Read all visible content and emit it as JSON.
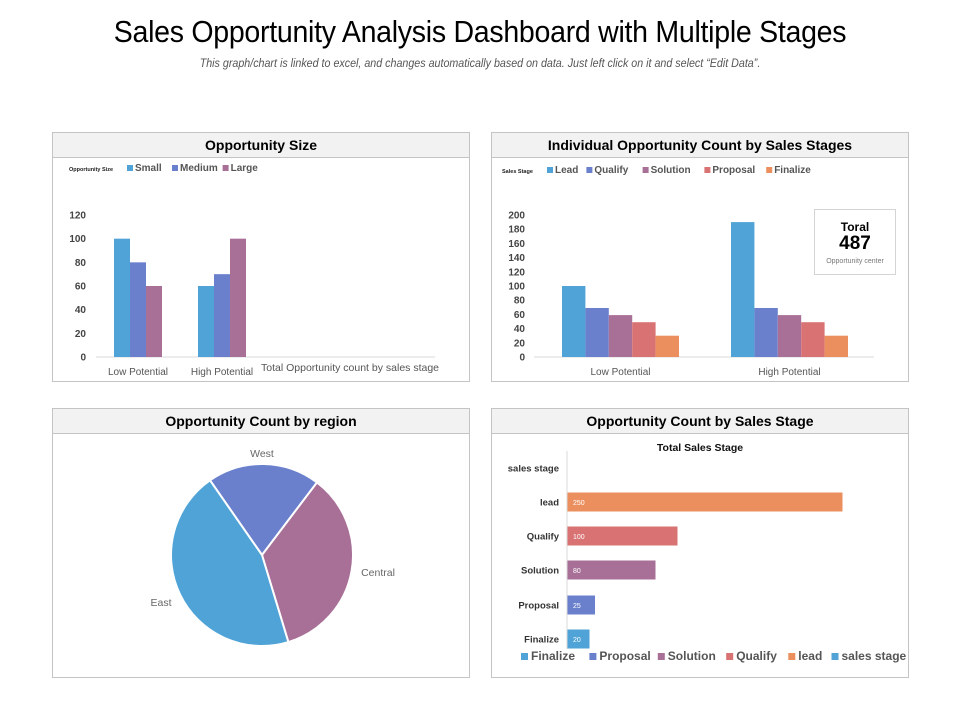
{
  "header": {
    "title": "Sales Opportunity Analysis Dashboard with Multiple Stages",
    "subtitle": "This graph/chart is linked to excel, and changes automatically based on data. Just left click on it and select “Edit Data”."
  },
  "colors": {
    "blue": "#4fa3d7",
    "indigo": "#6a80cd",
    "mauve": "#a86f97",
    "salmon": "#d97272",
    "orange": "#ec8f5f"
  },
  "panels": {
    "opportunity_size": {
      "title": "Opportunity Size",
      "footnote": "Total Opportunity  count by sales stage"
    },
    "individual_count": {
      "title": "Individual Opportunity Count by Sales Stages"
    },
    "region": {
      "title": "Opportunity Count by region"
    },
    "sales_stage": {
      "title": "Opportunity Count by Sales Stage"
    }
  },
  "total_box": {
    "label": "Toral",
    "value": "487",
    "caption": "Opportunity center"
  },
  "chart_data": [
    {
      "id": "opportunity_size",
      "type": "bar",
      "title": "Opportunity Size",
      "legend_title": "Opportunity Size",
      "legend_position": "top-left",
      "categories": [
        "Low Potential",
        "High Potential"
      ],
      "series": [
        {
          "name": "Small",
          "color": "#4fa3d7",
          "values": [
            100,
            60
          ]
        },
        {
          "name": "Medium",
          "color": "#6a80cd",
          "values": [
            80,
            70
          ]
        },
        {
          "name": "Large",
          "color": "#a86f97",
          "values": [
            60,
            100
          ]
        }
      ],
      "ylim": [
        0,
        120
      ],
      "yticks": [
        0,
        20,
        40,
        60,
        80,
        100,
        120
      ],
      "grid": false,
      "xlabel": "Total Opportunity  count by sales stage",
      "ylabel": ""
    },
    {
      "id": "individual_count",
      "type": "bar",
      "title": "Individual Opportunity Count by Sales Stages",
      "legend_title": "Sales Stage",
      "legend_position": "top-left",
      "categories": [
        "Low Potential",
        "High Potential"
      ],
      "series": [
        {
          "name": "Lead",
          "color": "#4fa3d7",
          "values": [
            100,
            190
          ]
        },
        {
          "name": "Qualify",
          "color": "#6a80cd",
          "values": [
            69,
            69
          ]
        },
        {
          "name": "Solution",
          "color": "#a86f97",
          "values": [
            59,
            59
          ]
        },
        {
          "name": "Proposal",
          "color": "#d97272",
          "values": [
            49,
            49
          ]
        },
        {
          "name": "Finalize",
          "color": "#ec8f5f",
          "values": [
            30,
            30
          ]
        }
      ],
      "ylim": [
        0,
        200
      ],
      "yticks": [
        0,
        20,
        40,
        60,
        80,
        100,
        120,
        140,
        160,
        180,
        200
      ],
      "grid": false,
      "xlabel": "",
      "ylabel": ""
    },
    {
      "id": "region",
      "type": "pie",
      "title": "Opportunity Count by region",
      "slices": [
        {
          "label": "West",
          "value": 20,
          "color": "#6a80cd"
        },
        {
          "label": "Central",
          "value": 35,
          "color": "#a86f97"
        },
        {
          "label": "East",
          "value": 45,
          "color": "#4fa3d7"
        }
      ]
    },
    {
      "id": "sales_stage",
      "type": "bar",
      "orientation": "horizontal",
      "title": "Total Sales Stage",
      "categories": [
        "sales stage",
        "lead",
        "Qualify",
        "Solution",
        "Proposal",
        "Finalize"
      ],
      "values": [
        null,
        250,
        100,
        80,
        25,
        20
      ],
      "colors": [
        "#4fa3d7",
        "#ec8f5f",
        "#d97272",
        "#a86f97",
        "#6a80cd",
        "#4fa3d7"
      ],
      "data_labels": [
        "",
        "250",
        "100",
        "80",
        "25",
        "20"
      ],
      "xlim": [
        0,
        260
      ],
      "legend_position": "bottom",
      "legend": [
        {
          "name": "Finalize",
          "color": "#4fa3d7"
        },
        {
          "name": "Proposal",
          "color": "#6a80cd"
        },
        {
          "name": "Solution",
          "color": "#a86f97"
        },
        {
          "name": "Qualify",
          "color": "#d97272"
        },
        {
          "name": "lead",
          "color": "#ec8f5f"
        },
        {
          "name": "sales stage",
          "color": "#4fa3d7"
        }
      ]
    }
  ]
}
